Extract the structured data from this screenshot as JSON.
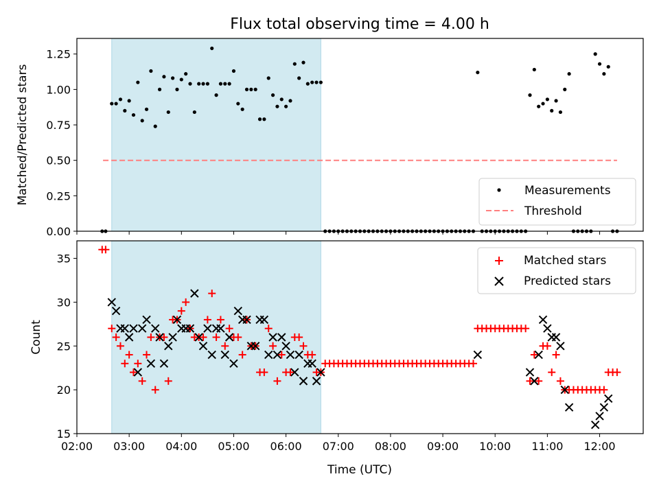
{
  "chart_data": {
    "type": "scatter",
    "title": "Flux total observing time = 4.00 h",
    "xlabel": "Time (UTC)",
    "x_ticks": [
      "02:00",
      "03:00",
      "04:00",
      "05:00",
      "06:00",
      "07:00",
      "08:00",
      "09:00",
      "10:00",
      "11:00",
      "12:00"
    ],
    "xlim": [
      "02:00",
      "12:50"
    ],
    "highlight_span": [
      "02:40",
      "06:40"
    ],
    "colors": {
      "span": "#add8e6",
      "measurements": "#000000",
      "threshold": "#ff7f7f",
      "matched": "#ff0000",
      "predicted": "#000000"
    },
    "top": {
      "ylabel": "Matched/Predicted stars",
      "ylim": [
        0,
        1.36
      ],
      "yticks": [
        "0.00",
        "0.25",
        "0.50",
        "0.75",
        "1.00",
        "1.25"
      ],
      "threshold": 0.5,
      "threshold_x": [
        "02:30",
        "12:20"
      ],
      "legend": [
        "Measurements",
        "Threshold"
      ],
      "points": [
        [
          "02:29",
          0
        ],
        [
          "02:33",
          0
        ],
        [
          "02:40",
          0.9
        ],
        [
          "02:45",
          0.9
        ],
        [
          "02:50",
          0.93
        ],
        [
          "02:55",
          0.85
        ],
        [
          "03:00",
          0.92
        ],
        [
          "03:05",
          0.82
        ],
        [
          "03:10",
          1.05
        ],
        [
          "03:15",
          0.78
        ],
        [
          "03:20",
          0.86
        ],
        [
          "03:25",
          1.13
        ],
        [
          "03:30",
          0.74
        ],
        [
          "03:35",
          1.0
        ],
        [
          "03:40",
          1.09
        ],
        [
          "03:45",
          0.84
        ],
        [
          "03:50",
          1.08
        ],
        [
          "03:55",
          1.0
        ],
        [
          "04:00",
          1.07
        ],
        [
          "04:05",
          1.11
        ],
        [
          "04:10",
          1.04
        ],
        [
          "04:15",
          0.84
        ],
        [
          "04:20",
          1.04
        ],
        [
          "04:25",
          1.04
        ],
        [
          "04:30",
          1.04
        ],
        [
          "04:35",
          1.29
        ],
        [
          "04:40",
          0.96
        ],
        [
          "04:45",
          1.04
        ],
        [
          "04:50",
          1.04
        ],
        [
          "04:55",
          1.04
        ],
        [
          "05:00",
          1.13
        ],
        [
          "05:05",
          0.9
        ],
        [
          "05:10",
          0.86
        ],
        [
          "05:15",
          1.0
        ],
        [
          "05:20",
          1.0
        ],
        [
          "05:25",
          1.0
        ],
        [
          "05:30",
          0.79
        ],
        [
          "05:35",
          0.79
        ],
        [
          "05:40",
          1.08
        ],
        [
          "05:45",
          0.96
        ],
        [
          "05:50",
          0.88
        ],
        [
          "05:55",
          0.93
        ],
        [
          "06:00",
          0.88
        ],
        [
          "06:05",
          0.92
        ],
        [
          "06:10",
          1.18
        ],
        [
          "06:15",
          1.08
        ],
        [
          "06:20",
          1.19
        ],
        [
          "06:25",
          1.04
        ],
        [
          "06:30",
          1.05
        ],
        [
          "06:35",
          1.05
        ],
        [
          "06:40",
          1.05
        ],
        [
          "06:45",
          0
        ],
        [
          "06:50",
          0
        ],
        [
          "06:55",
          0
        ],
        [
          "07:00",
          0
        ],
        [
          "07:05",
          0
        ],
        [
          "07:10",
          0
        ],
        [
          "07:15",
          0
        ],
        [
          "07:20",
          0
        ],
        [
          "07:25",
          0
        ],
        [
          "07:30",
          0
        ],
        [
          "07:35",
          0
        ],
        [
          "07:40",
          0
        ],
        [
          "07:45",
          0
        ],
        [
          "07:50",
          0
        ],
        [
          "07:55",
          0
        ],
        [
          "08:00",
          0
        ],
        [
          "08:05",
          0
        ],
        [
          "08:10",
          0
        ],
        [
          "08:15",
          0
        ],
        [
          "08:20",
          0
        ],
        [
          "08:25",
          0
        ],
        [
          "08:30",
          0
        ],
        [
          "08:35",
          0
        ],
        [
          "08:40",
          0
        ],
        [
          "08:45",
          0
        ],
        [
          "08:50",
          0
        ],
        [
          "08:55",
          0
        ],
        [
          "09:00",
          0
        ],
        [
          "09:05",
          0
        ],
        [
          "09:10",
          0
        ],
        [
          "09:15",
          0
        ],
        [
          "09:20",
          0
        ],
        [
          "09:25",
          0
        ],
        [
          "09:30",
          0
        ],
        [
          "09:35",
          0
        ],
        [
          "09:40",
          1.12
        ],
        [
          "09:45",
          0
        ],
        [
          "09:50",
          0
        ],
        [
          "09:55",
          0
        ],
        [
          "10:00",
          0
        ],
        [
          "10:05",
          0
        ],
        [
          "10:10",
          0
        ],
        [
          "10:15",
          0
        ],
        [
          "10:20",
          0
        ],
        [
          "10:25",
          0
        ],
        [
          "10:30",
          0
        ],
        [
          "10:35",
          0
        ],
        [
          "10:40",
          0.96
        ],
        [
          "10:45",
          1.14
        ],
        [
          "10:50",
          0.88
        ],
        [
          "10:55",
          0.9
        ],
        [
          "11:00",
          0.93
        ],
        [
          "11:05",
          0.85
        ],
        [
          "11:10",
          0.92
        ],
        [
          "11:15",
          0.84
        ],
        [
          "11:20",
          1.0
        ],
        [
          "11:25",
          1.11
        ],
        [
          "11:30",
          0
        ],
        [
          "11:35",
          0
        ],
        [
          "11:40",
          0
        ],
        [
          "11:45",
          0
        ],
        [
          "11:50",
          0
        ],
        [
          "11:55",
          1.25
        ],
        [
          "12:00",
          1.18
        ],
        [
          "12:05",
          1.11
        ],
        [
          "12:10",
          1.16
        ],
        [
          "12:15",
          0
        ],
        [
          "12:20",
          0
        ]
      ]
    },
    "bottom": {
      "ylabel": "Count",
      "ylim": [
        15,
        37
      ],
      "yticks": [
        "15",
        "20",
        "25",
        "30",
        "35"
      ],
      "legend": [
        "Matched stars",
        "Predicted stars"
      ],
      "matched": [
        [
          "02:29",
          36
        ],
        [
          "02:33",
          36
        ],
        [
          "02:40",
          27
        ],
        [
          "02:45",
          26
        ],
        [
          "02:50",
          25
        ],
        [
          "02:55",
          23
        ],
        [
          "03:00",
          24
        ],
        [
          "03:05",
          22
        ],
        [
          "03:10",
          23
        ],
        [
          "03:15",
          21
        ],
        [
          "03:20",
          24
        ],
        [
          "03:25",
          26
        ],
        [
          "03:30",
          20
        ],
        [
          "03:35",
          26
        ],
        [
          "03:40",
          26
        ],
        [
          "03:45",
          21
        ],
        [
          "03:50",
          28
        ],
        [
          "03:55",
          28
        ],
        [
          "04:00",
          29
        ],
        [
          "04:05",
          30
        ],
        [
          "04:10",
          27
        ],
        [
          "04:15",
          26
        ],
        [
          "04:20",
          26
        ],
        [
          "04:25",
          26
        ],
        [
          "04:30",
          28
        ],
        [
          "04:35",
          31
        ],
        [
          "04:40",
          26
        ],
        [
          "04:45",
          28
        ],
        [
          "04:50",
          25
        ],
        [
          "04:55",
          27
        ],
        [
          "05:00",
          26
        ],
        [
          "05:05",
          26
        ],
        [
          "05:10",
          24
        ],
        [
          "05:15",
          28
        ],
        [
          "05:20",
          25
        ],
        [
          "05:25",
          25
        ],
        [
          "05:30",
          22
        ],
        [
          "05:35",
          22
        ],
        [
          "05:40",
          27
        ],
        [
          "05:45",
          25
        ],
        [
          "05:50",
          21
        ],
        [
          "05:55",
          24
        ],
        [
          "06:00",
          22
        ],
        [
          "06:05",
          22
        ],
        [
          "06:10",
          26
        ],
        [
          "06:15",
          26
        ],
        [
          "06:20",
          25
        ],
        [
          "06:25",
          24
        ],
        [
          "06:30",
          24
        ],
        [
          "06:35",
          22
        ],
        [
          "06:40",
          22
        ],
        [
          "06:45",
          23
        ],
        [
          "06:50",
          23
        ],
        [
          "06:55",
          23
        ],
        [
          "07:00",
          23
        ],
        [
          "07:05",
          23
        ],
        [
          "07:10",
          23
        ],
        [
          "07:15",
          23
        ],
        [
          "07:20",
          23
        ],
        [
          "07:25",
          23
        ],
        [
          "07:30",
          23
        ],
        [
          "07:35",
          23
        ],
        [
          "07:40",
          23
        ],
        [
          "07:45",
          23
        ],
        [
          "07:50",
          23
        ],
        [
          "07:55",
          23
        ],
        [
          "08:00",
          23
        ],
        [
          "08:05",
          23
        ],
        [
          "08:10",
          23
        ],
        [
          "08:15",
          23
        ],
        [
          "08:20",
          23
        ],
        [
          "08:25",
          23
        ],
        [
          "08:30",
          23
        ],
        [
          "08:35",
          23
        ],
        [
          "08:40",
          23
        ],
        [
          "08:45",
          23
        ],
        [
          "08:50",
          23
        ],
        [
          "08:55",
          23
        ],
        [
          "09:00",
          23
        ],
        [
          "09:05",
          23
        ],
        [
          "09:10",
          23
        ],
        [
          "09:15",
          23
        ],
        [
          "09:20",
          23
        ],
        [
          "09:25",
          23
        ],
        [
          "09:30",
          23
        ],
        [
          "09:35",
          23
        ],
        [
          "09:40",
          27
        ],
        [
          "09:45",
          27
        ],
        [
          "09:50",
          27
        ],
        [
          "09:55",
          27
        ],
        [
          "10:00",
          27
        ],
        [
          "10:05",
          27
        ],
        [
          "10:10",
          27
        ],
        [
          "10:15",
          27
        ],
        [
          "10:20",
          27
        ],
        [
          "10:25",
          27
        ],
        [
          "10:30",
          27
        ],
        [
          "10:35",
          27
        ],
        [
          "10:40",
          21
        ],
        [
          "10:45",
          24
        ],
        [
          "10:50",
          21
        ],
        [
          "10:55",
          25
        ],
        [
          "11:00",
          25
        ],
        [
          "11:05",
          22
        ],
        [
          "11:10",
          24
        ],
        [
          "11:15",
          21
        ],
        [
          "11:20",
          20
        ],
        [
          "11:25",
          20
        ],
        [
          "11:30",
          20
        ],
        [
          "11:35",
          20
        ],
        [
          "11:40",
          20
        ],
        [
          "11:45",
          20
        ],
        [
          "11:50",
          20
        ],
        [
          "11:55",
          20
        ],
        [
          "12:00",
          20
        ],
        [
          "12:05",
          20
        ],
        [
          "12:10",
          22
        ],
        [
          "12:15",
          22
        ],
        [
          "12:20",
          22
        ]
      ],
      "predicted": [
        [
          "02:40",
          30
        ],
        [
          "02:45",
          29
        ],
        [
          "02:50",
          27
        ],
        [
          "02:55",
          27
        ],
        [
          "03:00",
          26
        ],
        [
          "03:05",
          27
        ],
        [
          "03:10",
          22
        ],
        [
          "03:15",
          27
        ],
        [
          "03:20",
          28
        ],
        [
          "03:25",
          23
        ],
        [
          "03:30",
          27
        ],
        [
          "03:35",
          26
        ],
        [
          "03:40",
          23
        ],
        [
          "03:45",
          25
        ],
        [
          "03:50",
          26
        ],
        [
          "03:55",
          28
        ],
        [
          "04:00",
          27
        ],
        [
          "04:05",
          27
        ],
        [
          "04:10",
          27
        ],
        [
          "04:15",
          31
        ],
        [
          "04:20",
          26
        ],
        [
          "04:25",
          25
        ],
        [
          "04:30",
          27
        ],
        [
          "04:35",
          24
        ],
        [
          "04:40",
          27
        ],
        [
          "04:45",
          27
        ],
        [
          "04:50",
          24
        ],
        [
          "04:55",
          26
        ],
        [
          "05:00",
          23
        ],
        [
          "05:05",
          29
        ],
        [
          "05:10",
          28
        ],
        [
          "05:15",
          28
        ],
        [
          "05:20",
          25
        ],
        [
          "05:25",
          25
        ],
        [
          "05:30",
          28
        ],
        [
          "05:35",
          28
        ],
        [
          "05:40",
          24
        ],
        [
          "05:45",
          26
        ],
        [
          "05:50",
          24
        ],
        [
          "05:55",
          26
        ],
        [
          "06:00",
          25
        ],
        [
          "06:05",
          24
        ],
        [
          "06:10",
          22
        ],
        [
          "06:15",
          24
        ],
        [
          "06:20",
          21
        ],
        [
          "06:25",
          23
        ],
        [
          "06:30",
          23
        ],
        [
          "06:35",
          21
        ],
        [
          "06:40",
          22
        ],
        [
          "09:40",
          24
        ],
        [
          "10:40",
          22
        ],
        [
          "10:45",
          21
        ],
        [
          "10:50",
          24
        ],
        [
          "10:55",
          28
        ],
        [
          "11:00",
          27
        ],
        [
          "11:05",
          26
        ],
        [
          "11:10",
          26
        ],
        [
          "11:15",
          25
        ],
        [
          "11:20",
          20
        ],
        [
          "11:25",
          18
        ],
        [
          "11:55",
          16
        ],
        [
          "12:00",
          17
        ],
        [
          "12:05",
          18
        ],
        [
          "12:10",
          19
        ]
      ]
    }
  }
}
